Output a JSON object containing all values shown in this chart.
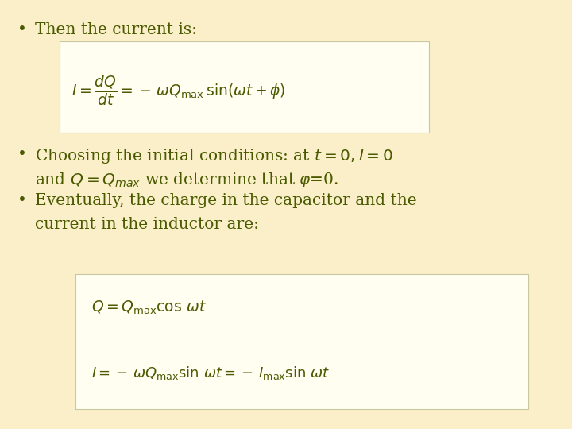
{
  "background_color": "#faefc8",
  "box_color": "#fffef0",
  "box_edge_color": "#c8c8a0",
  "text_color": "#4a5a00",
  "bullet1_text": "Then the current is:",
  "bullet2_line1": "Choosing the initial conditions: at $t = 0, I = 0$",
  "bullet2_line2": "and $Q = Q_{max}$ we determine that $\\varphi$=0.",
  "bullet3_line1": "Eventually, the charge in the capacitor and the",
  "bullet3_line2": "current in the inductor are:",
  "formula1": "$I = \\dfrac{dQ}{dt} = -\\,\\omega Q_{\\mathrm{max}}\\,\\sin(\\omega t + \\phi)$",
  "formula2": "$Q = Q_{\\mathrm{max}}\\cos\\,\\omega t$",
  "formula3": "$I = -\\,\\omega Q_{\\mathrm{max}}\\sin\\,\\omega t = -\\,I_{\\mathrm{max}}\\sin\\,\\omega t$",
  "fs_bullet": 14.5,
  "fs_formula1": 13.5,
  "fs_formula2": 13.5,
  "fs_formula3": 13.0
}
